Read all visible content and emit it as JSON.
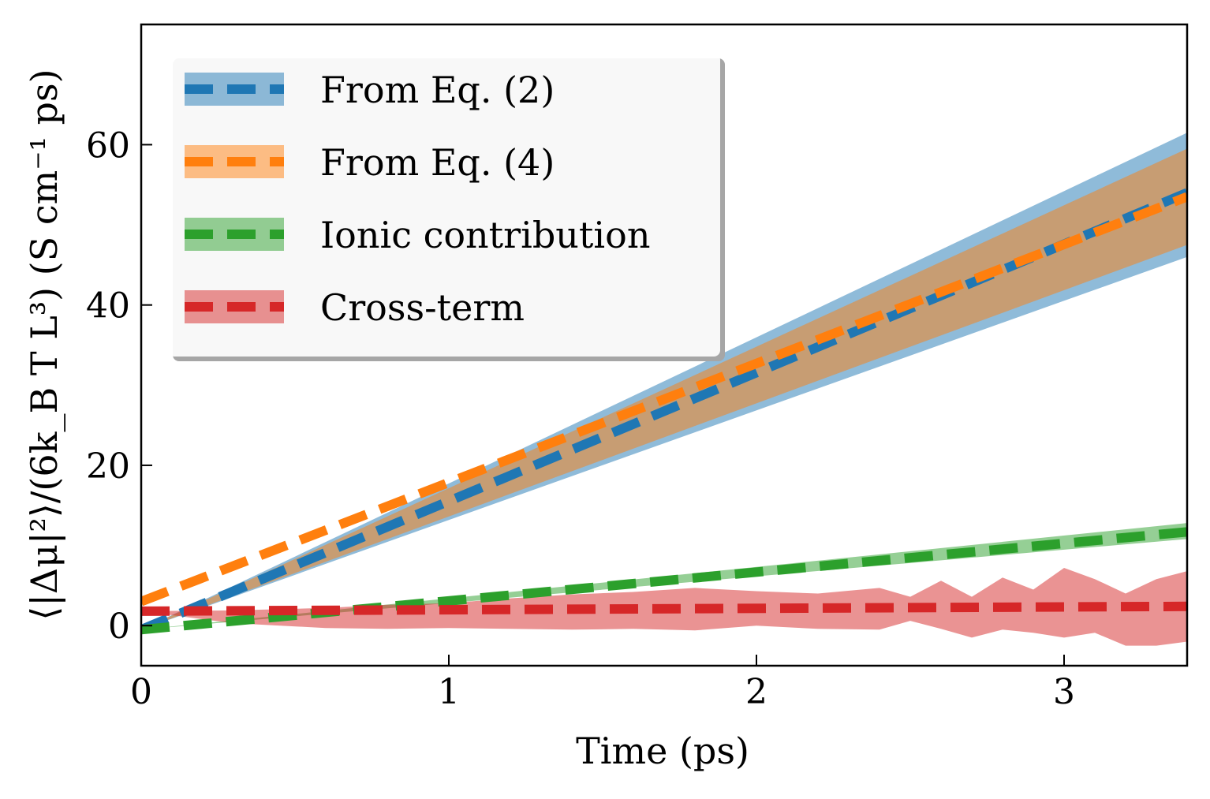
{
  "chart_data": {
    "type": "line",
    "title": "",
    "xlabel": "Time (ps)",
    "ylabel": "⟨|Δμ|²⟩/(6k_B T L³) (S cm⁻¹ ps)",
    "xlim": [
      0,
      3.4
    ],
    "ylim": [
      -5,
      75
    ],
    "x_ticks": [
      "0",
      "1",
      "2",
      "3"
    ],
    "y_ticks": [
      "0",
      "20",
      "40",
      "60"
    ],
    "legend_position": "top-left",
    "series": [
      {
        "name": "From Eq. (2)",
        "color": "#1f77b4",
        "x": [
          0,
          3.4
        ],
        "values": [
          -0.5,
          54.0
        ],
        "band_lower": [
          -0.5,
          46.0
        ],
        "band_upper": [
          -0.5,
          61.5
        ]
      },
      {
        "name": "From Eq. (4)",
        "color": "#ff7f0e",
        "x": [
          0,
          3.4
        ],
        "values": [
          3.0,
          53.5
        ],
        "band_lower": [
          -0.5,
          47.5
        ],
        "band_upper": [
          -0.5,
          59.5
        ]
      },
      {
        "name": "Ionic contribution",
        "color": "#2ca02c",
        "x": [
          0,
          3.4
        ],
        "values": [
          -0.5,
          11.7
        ],
        "band_lower": [
          -0.5,
          10.8
        ],
        "band_upper": [
          -0.5,
          12.8
        ]
      },
      {
        "name": "Cross-term",
        "color": "#d62728",
        "x": [
          0,
          3.4
        ],
        "values": [
          1.8,
          2.4
        ],
        "band_x": [
          0,
          0.3,
          0.6,
          0.8,
          1.0,
          1.2,
          1.4,
          1.6,
          1.8,
          2.0,
          2.2,
          2.4,
          2.5,
          2.6,
          2.7,
          2.8,
          2.9,
          3.0,
          3.1,
          3.2,
          3.3,
          3.4
        ],
        "band_upper": [
          1.8,
          1.9,
          2.2,
          2.6,
          2.8,
          3.4,
          3.9,
          4.2,
          4.7,
          4.3,
          4.0,
          4.7,
          3.6,
          5.6,
          3.6,
          6.0,
          4.5,
          7.2,
          5.8,
          4.0,
          5.8,
          6.8
        ],
        "band_lower": [
          1.8,
          0.3,
          -0.3,
          -0.4,
          -0.3,
          -0.4,
          -0.5,
          -0.4,
          -0.6,
          0.0,
          -0.4,
          -0.5,
          0.6,
          -0.4,
          -1.5,
          -0.5,
          -0.9,
          -1.5,
          -0.9,
          -2.5,
          -2.5,
          -2.0
        ]
      }
    ]
  }
}
